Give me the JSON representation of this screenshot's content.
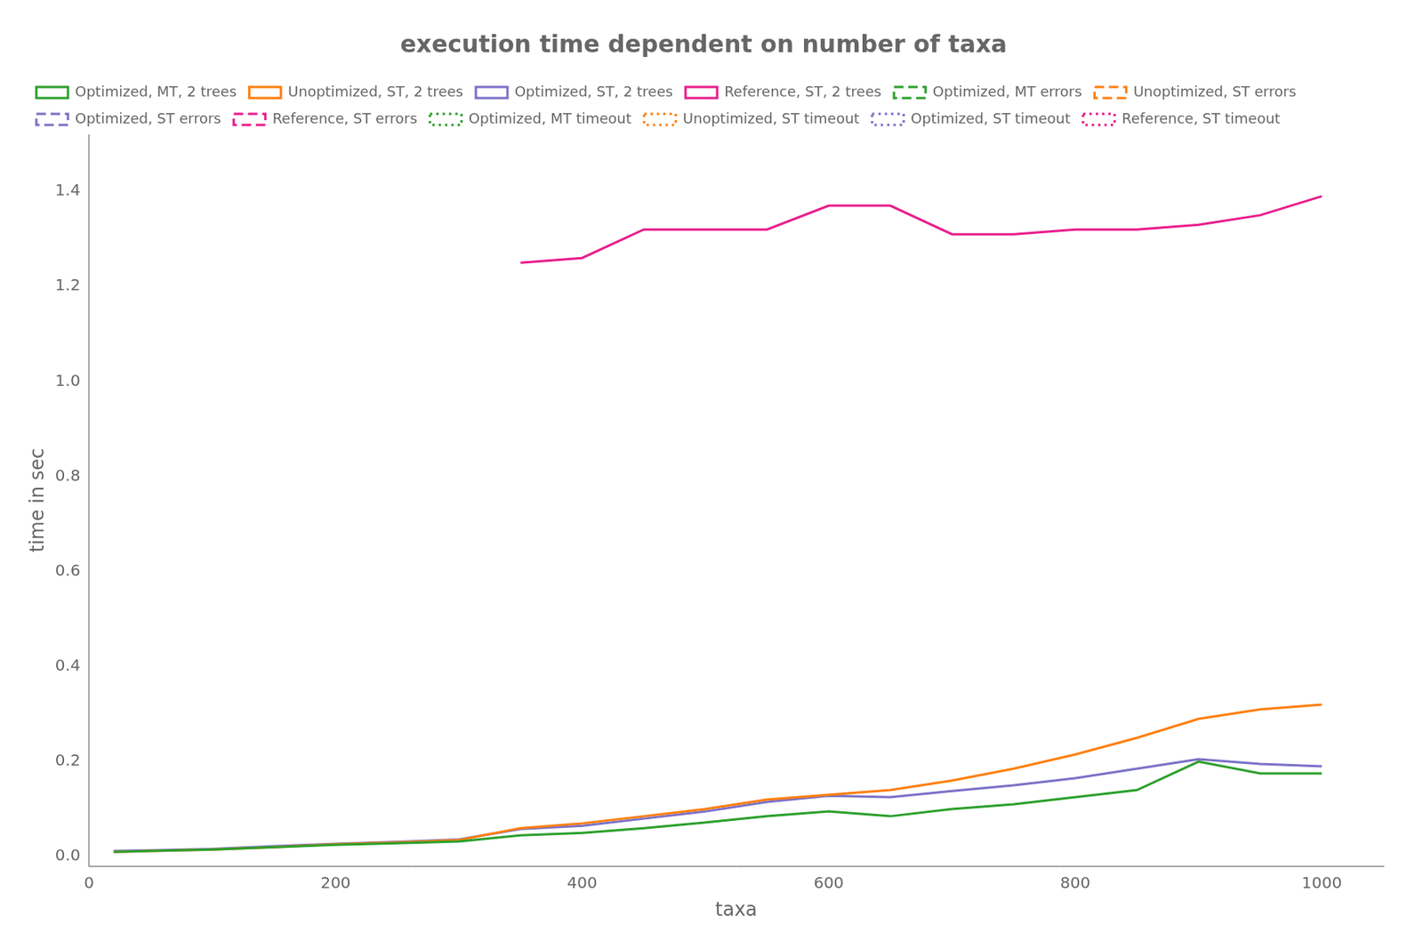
{
  "chart_data": {
    "type": "line",
    "title": "execution time dependent on number of taxa",
    "x_label": "taxa",
    "y_label": "time in sec",
    "x": [
      20,
      50,
      100,
      150,
      200,
      250,
      300,
      350,
      400,
      450,
      500,
      550,
      600,
      650,
      700,
      750,
      800,
      850,
      900,
      950,
      1000
    ],
    "xlim": [
      0,
      1050
    ],
    "xticks": [
      0,
      200,
      400,
      600,
      800,
      1000
    ],
    "ylim": [
      -0.02,
      1.52
    ],
    "yticks": [
      {
        "value": 0.0,
        "label": "0.0"
      },
      0.2,
      0.4,
      0.6,
      0.8,
      {
        "value": 1.0,
        "label": "1.0"
      },
      1.2,
      1.4
    ],
    "grid": false,
    "legend": "upper left",
    "series": [
      {
        "name": "Optimized, MT, 2 trees",
        "color": "#2ca02c",
        "line_style": "solid",
        "values": [
          0.01,
          0.012,
          0.015,
          0.02,
          0.025,
          0.028,
          0.032,
          0.045,
          0.05,
          0.06,
          0.072,
          0.085,
          0.095,
          0.085,
          0.1,
          0.11,
          0.125,
          0.14,
          0.2,
          0.175,
          0.175
        ]
      },
      {
        "name": "Unoptimized, ST, 2 trees",
        "color": "#ff7f0e",
        "line_style": "solid",
        "values": [
          0.01,
          0.012,
          0.015,
          0.02,
          0.026,
          0.03,
          0.035,
          0.06,
          0.07,
          0.085,
          0.1,
          0.12,
          0.13,
          0.14,
          0.16,
          0.185,
          0.215,
          0.25,
          0.29,
          0.31,
          0.32
        ]
      },
      {
        "name": "Optimized, ST, 2 trees",
        "color": "#7b72c8",
        "line_style": "solid",
        "values": [
          0.012,
          0.013,
          0.016,
          0.022,
          0.027,
          0.031,
          0.036,
          0.058,
          0.065,
          0.08,
          0.095,
          0.115,
          0.128,
          0.125,
          0.138,
          0.15,
          0.165,
          0.185,
          0.205,
          0.195,
          0.19
        ]
      },
      {
        "name": "Reference, ST, 2 trees",
        "color": "#e91e8c",
        "line_style": "solid",
        "values": [
          null,
          null,
          null,
          null,
          null,
          null,
          null,
          1.25,
          1.26,
          1.32,
          1.32,
          1.32,
          1.37,
          1.37,
          1.31,
          1.31,
          1.32,
          1.32,
          1.33,
          1.35,
          1.39
        ]
      },
      {
        "name": "Optimized, MT errors",
        "color": "#2ca02c",
        "line_style": "dashed",
        "values": [
          null,
          null,
          null,
          null,
          null,
          null,
          null,
          null,
          null,
          null,
          null,
          null,
          null,
          null,
          null,
          null,
          null,
          null,
          null,
          null,
          null
        ]
      },
      {
        "name": "Unoptimized, ST errors",
        "color": "#ff7f0e",
        "line_style": "dashed",
        "values": [
          null,
          null,
          null,
          null,
          null,
          null,
          null,
          null,
          null,
          null,
          null,
          null,
          null,
          null,
          null,
          null,
          null,
          null,
          null,
          null,
          null
        ]
      },
      {
        "name": "Optimized, ST errors",
        "color": "#7b72c8",
        "line_style": "dashed",
        "values": [
          null,
          null,
          null,
          null,
          null,
          null,
          null,
          null,
          null,
          null,
          null,
          null,
          null,
          null,
          null,
          null,
          null,
          null,
          null,
          null,
          null
        ]
      },
      {
        "name": "Reference, ST errors",
        "color": "#e91e8c",
        "line_style": "dashed",
        "values": [
          null,
          null,
          null,
          null,
          null,
          null,
          null,
          null,
          null,
          null,
          null,
          null,
          null,
          null,
          null,
          null,
          null,
          null,
          null,
          null,
          null
        ]
      },
      {
        "name": "Optimized, MT timeout",
        "color": "#2ca02c",
        "line_style": "dotted",
        "values": [
          null,
          null,
          null,
          null,
          null,
          null,
          null,
          null,
          null,
          null,
          null,
          null,
          null,
          null,
          null,
          null,
          null,
          null,
          null,
          null,
          null
        ]
      },
      {
        "name": "Unoptimized, ST timeout",
        "color": "#ff7f0e",
        "line_style": "dotted",
        "values": [
          null,
          null,
          null,
          null,
          null,
          null,
          null,
          null,
          null,
          null,
          null,
          null,
          null,
          null,
          null,
          null,
          null,
          null,
          null,
          null,
          null
        ]
      },
      {
        "name": "Optimized, ST timeout",
        "color": "#7b72c8",
        "line_style": "dotted",
        "values": [
          null,
          null,
          null,
          null,
          null,
          null,
          null,
          null,
          null,
          null,
          null,
          null,
          null,
          null,
          null,
          null,
          null,
          null,
          null,
          null,
          null
        ]
      },
      {
        "name": "Reference, ST timeout",
        "color": "#e91e8c",
        "line_style": "dotted",
        "values": [
          null,
          null,
          null,
          null,
          null,
          null,
          null,
          null,
          null,
          null,
          null,
          null,
          null,
          null,
          null,
          null,
          null,
          null,
          null,
          null,
          null
        ]
      }
    ]
  }
}
